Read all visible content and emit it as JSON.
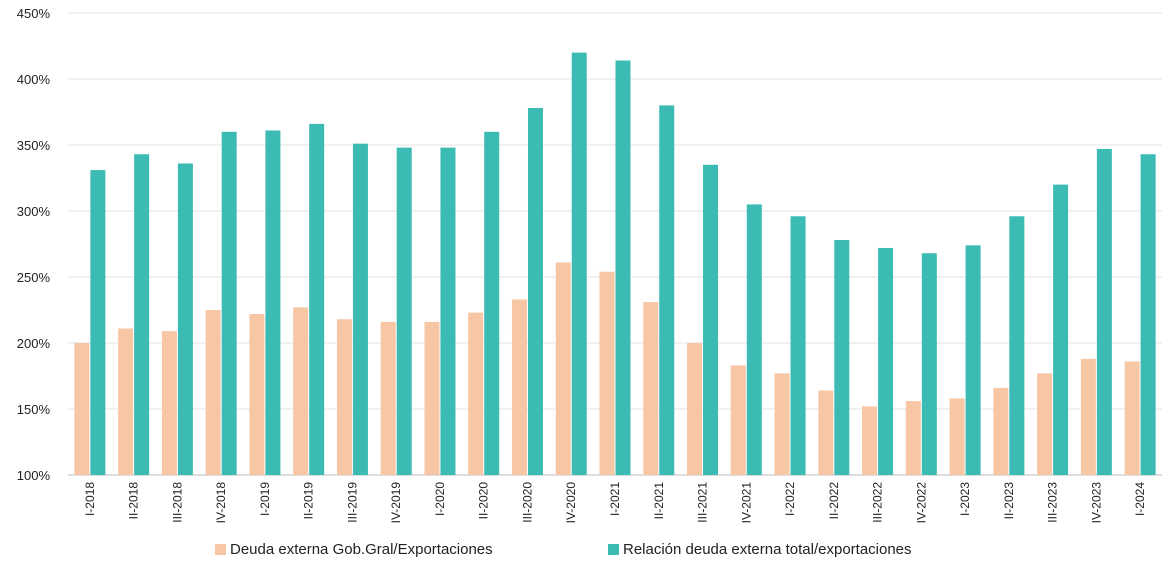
{
  "chart_data": {
    "type": "bar",
    "categories": [
      "I-2018",
      "II-2018",
      "III-2018",
      "IV-2018",
      "I-2019",
      "II-2019",
      "III-2019",
      "IV-2019",
      "I-2020",
      "II-2020",
      "III-2020",
      "IV-2020",
      "I-2021",
      "II-2021",
      "III-2021",
      "IV-2021",
      "I-2022",
      "II-2022",
      "III-2022",
      "IV-2022",
      "I-2023",
      "II-2023",
      "III-2023",
      "IV-2023",
      "I-2024"
    ],
    "series": [
      {
        "name": "Deuda externa Gob.Gral/Exportaciones",
        "color": "#f7c7a5",
        "values": [
          200,
          211,
          209,
          225,
          222,
          227,
          218,
          216,
          216,
          223,
          233,
          261,
          254,
          231,
          200,
          183,
          177,
          164,
          152,
          156,
          158,
          166,
          177,
          188,
          186
        ]
      },
      {
        "name": "Relación  deuda externa total/exportaciones",
        "color": "#3cbab4",
        "values": [
          331,
          343,
          336,
          360,
          361,
          366,
          351,
          348,
          348,
          360,
          378,
          420,
          414,
          380,
          335,
          305,
          296,
          278,
          272,
          268,
          274,
          296,
          320,
          347,
          343
        ]
      }
    ],
    "ylim": [
      100,
      450
    ],
    "yticks": [
      "100%",
      "150%",
      "200%",
      "250%",
      "300%",
      "350%",
      "400%",
      "450%"
    ],
    "grid": true,
    "legend_position": "bottom"
  }
}
